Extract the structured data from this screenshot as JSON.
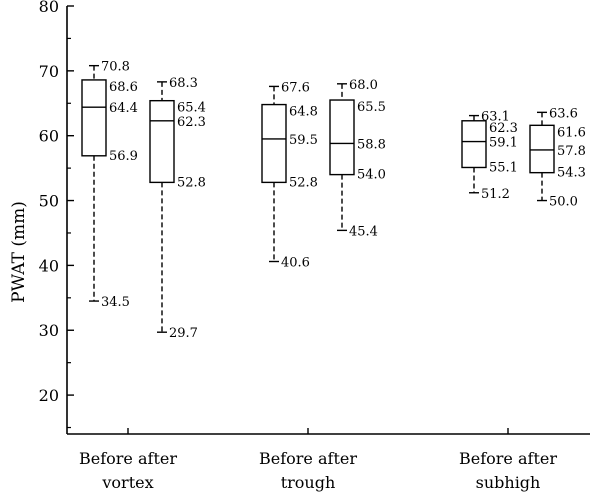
{
  "chart_data": {
    "type": "box",
    "ylabel": "PWAT (mm)",
    "ylim": [
      14,
      80
    ],
    "yticks": [
      20,
      30,
      40,
      50,
      60,
      70,
      80
    ],
    "groups": [
      {
        "label_line1": "Before after",
        "label_line2": "vortex"
      },
      {
        "label_line1": "Before after",
        "label_line2": "trough"
      },
      {
        "label_line1": "Before after",
        "label_line2": "subhigh"
      }
    ],
    "boxes": [
      {
        "group": 0,
        "position": "before",
        "max": 70.8,
        "q3": 68.6,
        "median": 64.4,
        "q1": 56.9,
        "min": 34.5
      },
      {
        "group": 0,
        "position": "after",
        "max": 68.3,
        "q3": 65.4,
        "median": 62.3,
        "q1": 52.8,
        "min": 29.7
      },
      {
        "group": 1,
        "position": "before",
        "max": 67.6,
        "q3": 64.8,
        "median": 59.5,
        "q1": 52.8,
        "min": 40.6
      },
      {
        "group": 1,
        "position": "after",
        "max": 68.0,
        "q3": 65.5,
        "median": 58.8,
        "q1": 54.0,
        "min": 45.4
      },
      {
        "group": 2,
        "position": "before",
        "max": 63.1,
        "q3": 62.3,
        "median": 59.1,
        "q1": 55.1,
        "min": 51.2
      },
      {
        "group": 2,
        "position": "after",
        "max": 63.6,
        "q3": 61.6,
        "median": 57.8,
        "q1": 54.3,
        "min": 50.0
      }
    ]
  }
}
